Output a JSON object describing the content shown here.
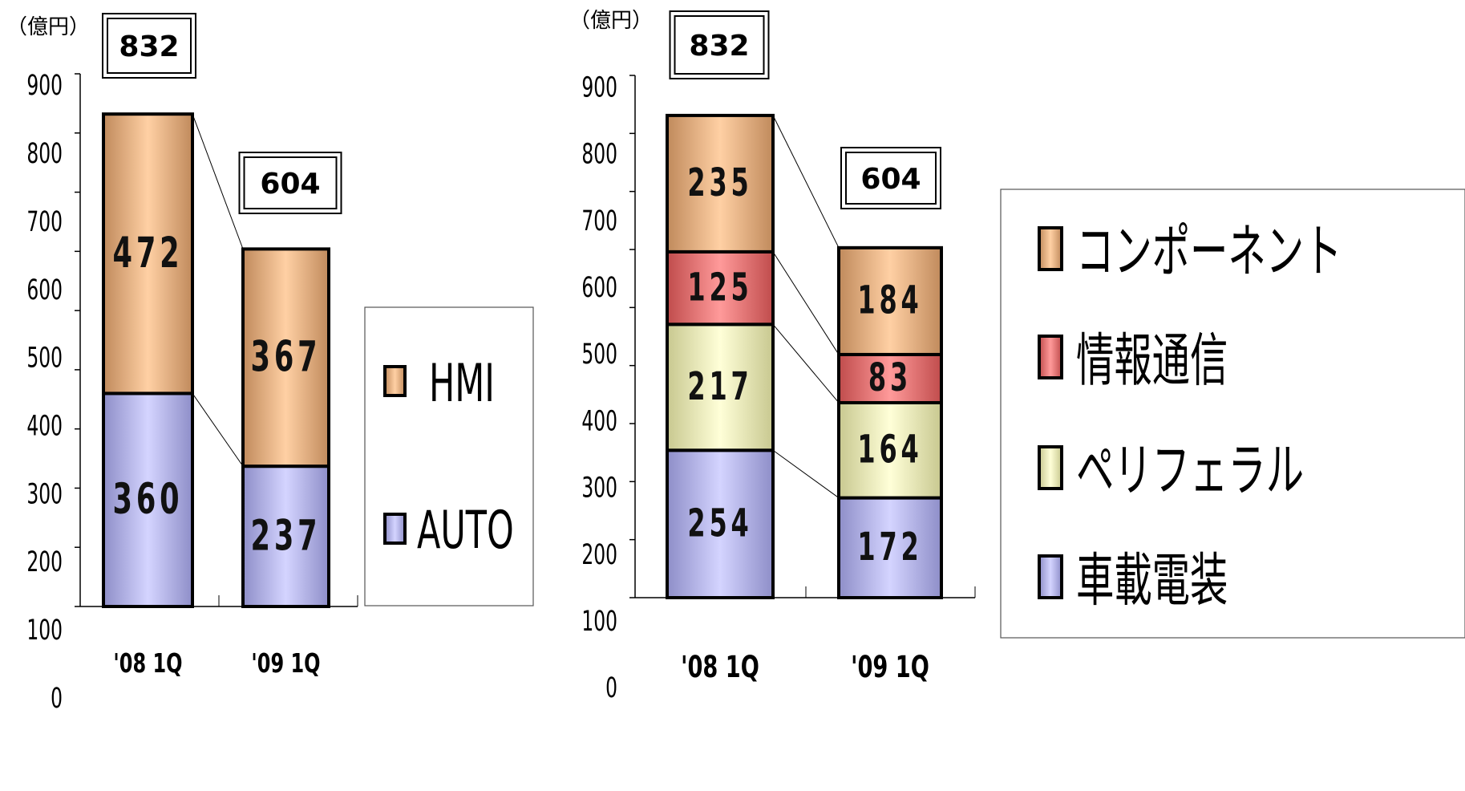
{
  "chart_data": [
    {
      "type": "bar",
      "stacked": true,
      "unit_label": "（億円）",
      "categories": [
        "'08 1Q",
        "'09 1Q"
      ],
      "totals": [
        832,
        604
      ],
      "ylim": [
        0,
        900
      ],
      "yticks": [
        0,
        100,
        200,
        300,
        400,
        500,
        600,
        700,
        800,
        900
      ],
      "series": [
        {
          "name": "AUTO",
          "values": [
            360,
            237
          ],
          "color": "#b8b8f4"
        },
        {
          "name": "HMI",
          "values": [
            472,
            367
          ],
          "color": "#f0b884"
        }
      ],
      "legend_order": [
        "HMI",
        "AUTO"
      ],
      "legend_placement": "right",
      "grid": false
    },
    {
      "type": "bar",
      "stacked": true,
      "unit_label": "（億円）",
      "categories": [
        "'08 1Q",
        "'09 1Q"
      ],
      "totals": [
        832,
        604
      ],
      "ylim": [
        0,
        900
      ],
      "yticks": [
        0,
        100,
        200,
        300,
        400,
        500,
        600,
        700,
        800,
        900
      ],
      "series": [
        {
          "name": "車載電装",
          "values": [
            254,
            172
          ],
          "color": "#b8b8f4"
        },
        {
          "name": "ペリフェラル",
          "values": [
            217,
            164
          ],
          "color": "#f2f2c0"
        },
        {
          "name": "情報通信",
          "values": [
            125,
            83
          ],
          "color": "#f07a7a"
        },
        {
          "name": "コンポーネント",
          "values": [
            235,
            184
          ],
          "color": "#f0b884"
        }
      ],
      "legend_order": [
        "コンポーネント",
        "情報通信",
        "ペリフェラル",
        "車載電装"
      ],
      "legend_placement": "right",
      "grid": false
    }
  ]
}
